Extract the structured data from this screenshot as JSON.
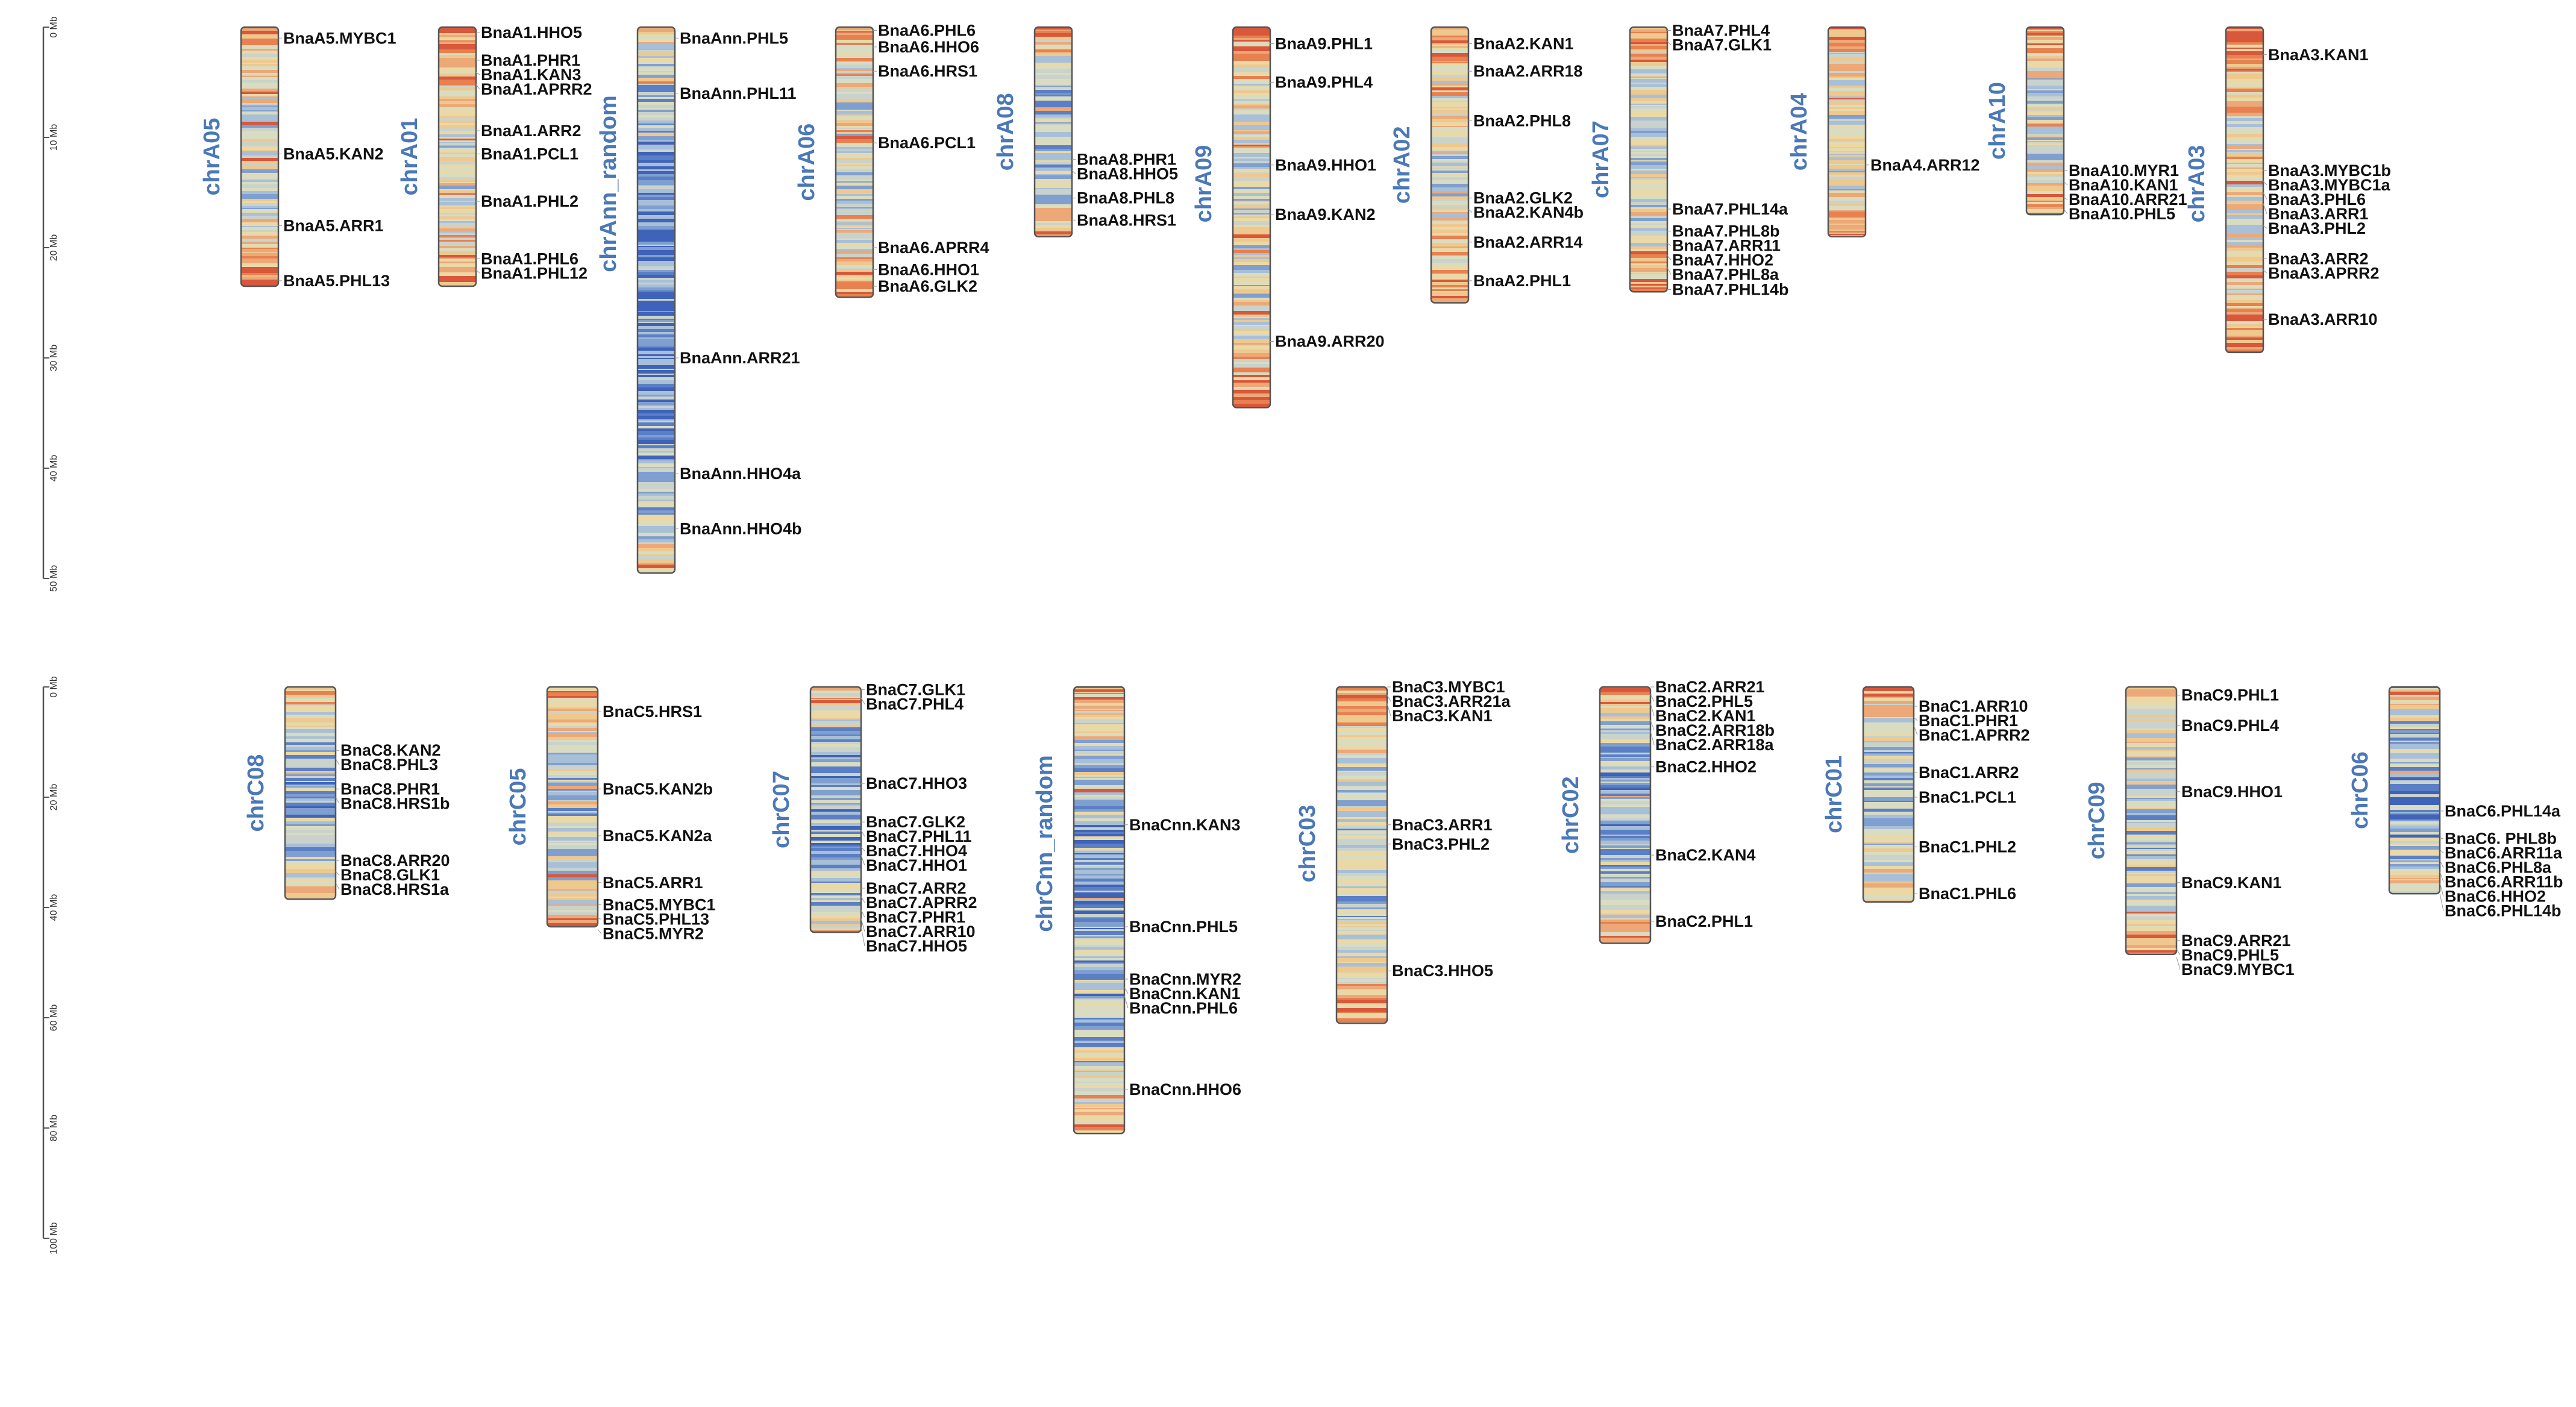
{
  "figure": {
    "type": "chromosome-ideogram"
  },
  "scale": {
    "unit": "Mb",
    "top_ticks": [
      "0 Mb",
      "10 Mb",
      "20 Mb",
      "30 Mb",
      "40 Mb",
      "50 Mb"
    ],
    "bottom_ticks": [
      "0 Mb",
      "20 Mb",
      "40 Mb",
      "60 Mb",
      "80 Mb",
      "100 Mb"
    ]
  },
  "colors": {
    "chromosome_label": "#4a78b8",
    "low_density": "#4a6fc0",
    "mid_density": "#ecdcad",
    "high_density": "#e8744c",
    "gene_label": "#111111"
  },
  "rows": [
    {
      "mb_per_unit": 1,
      "chromosomes": [
        {
          "name": "chrA05",
          "length_mb": 23.5,
          "genes": [
            {
              "label": "BnaA5.MYBC1",
              "pos": 1.0
            },
            {
              "label": "BnaA5.KAN2",
              "pos": 11.5
            },
            {
              "label": "BnaA5.ARR1",
              "pos": 18.0
            },
            {
              "label": "BnaA5.PHL13",
              "pos": 23.0
            }
          ]
        },
        {
          "name": "chrA01",
          "length_mb": 23.5,
          "genes": [
            {
              "label": "BnaA1.HHO5",
              "pos": 0.5
            },
            {
              "label": "BnaA1.PHR1",
              "pos": 3.0
            },
            {
              "label": "BnaA1.KAN3",
              "pos": 4.1
            },
            {
              "label": "BnaA1.APRR2",
              "pos": 5.2
            },
            {
              "label": "BnaA1.ARR2",
              "pos": 9.4
            },
            {
              "label": "BnaA1.PCL1",
              "pos": 11.5
            },
            {
              "label": "BnaA1.PHL2",
              "pos": 15.8
            },
            {
              "label": "BnaA1.PHL6",
              "pos": 21.0
            },
            {
              "label": "BnaA1.PHL12",
              "pos": 22.0
            }
          ]
        },
        {
          "name": "chrAnn_random",
          "length_mb": 49.5,
          "genes": [
            {
              "label": "BnaAnn.PHL5",
              "pos": 1.0
            },
            {
              "label": "BnaAnn.PHL11",
              "pos": 6.0
            },
            {
              "label": "BnaAnn.ARR21",
              "pos": 30.0
            },
            {
              "label": "BnaAnn.HHO4a",
              "pos": 40.5
            },
            {
              "label": "BnaAnn.HHO4b",
              "pos": 45.5
            }
          ]
        },
        {
          "name": "chrA06",
          "length_mb": 24.5,
          "genes": [
            {
              "label": "BnaA6.PHL6",
              "pos": 0.3
            },
            {
              "label": "BnaA6.HHO6",
              "pos": 1.8
            },
            {
              "label": "BnaA6.HRS1",
              "pos": 4.0
            },
            {
              "label": "BnaA6.PCL1",
              "pos": 10.5
            },
            {
              "label": "BnaA6.APRR4",
              "pos": 20.0
            },
            {
              "label": "BnaA6.HHO1",
              "pos": 22.0
            },
            {
              "label": "BnaA6.GLK2",
              "pos": 23.5
            }
          ]
        },
        {
          "name": "chrA08",
          "length_mb": 19.0,
          "genes": [
            {
              "label": "BnaA8.PHR1",
              "pos": 12.0
            },
            {
              "label": "BnaA8.HHO5",
              "pos": 13.0
            },
            {
              "label": "BnaA8.PHL8",
              "pos": 15.5
            },
            {
              "label": "BnaA8.HRS1",
              "pos": 17.5
            }
          ]
        },
        {
          "name": "chrA09",
          "length_mb": 34.5,
          "genes": [
            {
              "label": "BnaA9.PHL1",
              "pos": 1.5
            },
            {
              "label": "BnaA9.PHL4",
              "pos": 5.0
            },
            {
              "label": "BnaA9.HHO1",
              "pos": 12.5
            },
            {
              "label": "BnaA9.KAN2",
              "pos": 17.0
            },
            {
              "label": "BnaA9.ARR20",
              "pos": 28.5
            }
          ]
        },
        {
          "name": "chrA02",
          "length_mb": 25.0,
          "genes": [
            {
              "label": "BnaA2.KAN1",
              "pos": 1.5
            },
            {
              "label": "BnaA2.ARR18",
              "pos": 4.0
            },
            {
              "label": "BnaA2.PHL8",
              "pos": 8.5
            },
            {
              "label": "BnaA2.GLK2",
              "pos": 15.5
            },
            {
              "label": "BnaA2.KAN4b",
              "pos": 16.5
            },
            {
              "label": "BnaA2.ARR14",
              "pos": 19.5
            },
            {
              "label": "BnaA2.PHL1",
              "pos": 23.0
            }
          ]
        },
        {
          "name": "chrA07",
          "length_mb": 24.0,
          "genes": [
            {
              "label": "BnaA7.PHL4",
              "pos": 0.3
            },
            {
              "label": "BnaA7.GLK1",
              "pos": 1.3
            },
            {
              "label": "BnaA7.PHL14a",
              "pos": 16.5
            },
            {
              "label": "BnaA7.PHL8b",
              "pos": 18.5
            },
            {
              "label": "BnaA7.ARR11",
              "pos": 19.6
            },
            {
              "label": "BnaA7.HHO2",
              "pos": 20.7
            },
            {
              "label": "BnaA7.PHL8a",
              "pos": 21.8
            },
            {
              "label": "BnaA7.PHL14b",
              "pos": 23.8
            }
          ]
        },
        {
          "name": "chrA04",
          "length_mb": 19.0,
          "genes": [
            {
              "label": "BnaA4.ARR12",
              "pos": 12.5
            }
          ]
        },
        {
          "name": "chrA10",
          "length_mb": 17.0,
          "genes": [
            {
              "label": "BnaA10.MYR1",
              "pos": 13.0
            },
            {
              "label": "BnaA10.KAN1",
              "pos": 14.0
            },
            {
              "label": "BnaA10.ARR21",
              "pos": 15.5
            },
            {
              "label": "BnaA10.PHL5",
              "pos": 16.5
            }
          ]
        },
        {
          "name": "chrA03",
          "length_mb": 29.5,
          "genes": [
            {
              "label": "BnaA3.KAN1",
              "pos": 2.5
            },
            {
              "label": "BnaA3.MYBC1b",
              "pos": 13.0
            },
            {
              "label": "BnaA3.MYBC1a",
              "pos": 14.0
            },
            {
              "label": "BnaA3.PHL6",
              "pos": 15.0
            },
            {
              "label": "BnaA3.ARR1",
              "pos": 16.0
            },
            {
              "label": "BnaA3.PHL2",
              "pos": 18.0
            },
            {
              "label": "BnaA3.ARR2",
              "pos": 21.0
            },
            {
              "label": "BnaA3.APRR2",
              "pos": 22.0
            },
            {
              "label": "BnaA3.ARR10",
              "pos": 26.5
            }
          ]
        }
      ]
    },
    {
      "mb_per_unit": 1,
      "chromosomes": [
        {
          "name": "chrC08",
          "length_mb": 38.5,
          "genes": [
            {
              "label": "BnaC8.KAN2",
              "pos": 11.5
            },
            {
              "label": "BnaC8.PHL3",
              "pos": 13.0
            },
            {
              "label": "BnaC8.PHR1",
              "pos": 18.5
            },
            {
              "label": "BnaC8.HRS1b",
              "pos": 20.0
            },
            {
              "label": "BnaC8.ARR20",
              "pos": 31.5
            },
            {
              "label": "BnaC8.GLK1",
              "pos": 33.5
            },
            {
              "label": "BnaC8.HRS1a",
              "pos": 35.5
            }
          ]
        },
        {
          "name": "chrC05",
          "length_mb": 43.5,
          "genes": [
            {
              "label": "BnaC5.HRS1",
              "pos": 4.5
            },
            {
              "label": "BnaC5.KAN2b",
              "pos": 18.5
            },
            {
              "label": "BnaC5.KAN2a",
              "pos": 27.0
            },
            {
              "label": "BnaC5.ARR1",
              "pos": 35.5
            },
            {
              "label": "BnaC5.MYBC1",
              "pos": 39.5
            },
            {
              "label": "BnaC5.PHL13",
              "pos": 42.0
            },
            {
              "label": "BnaC5.MYR2",
              "pos": 44.0
            }
          ]
        },
        {
          "name": "chrC07",
          "length_mb": 44.5,
          "genes": [
            {
              "label": "BnaC7.GLK1",
              "pos": 0.5
            },
            {
              "label": "BnaC7.PHL4",
              "pos": 2.0
            },
            {
              "label": "BnaC7.HHO3",
              "pos": 17.5
            },
            {
              "label": "BnaC7.GLK2",
              "pos": 24.5
            },
            {
              "label": "BnaC7.PHL11",
              "pos": 26.0
            },
            {
              "label": "BnaC7.HHO4",
              "pos": 29.0
            },
            {
              "label": "BnaC7.HHO1",
              "pos": 30.5
            },
            {
              "label": "BnaC7.ARR2",
              "pos": 36.5
            },
            {
              "label": "BnaC7.APRR2",
              "pos": 38.0
            },
            {
              "label": "BnaC7.PHR1",
              "pos": 40.5
            },
            {
              "label": "BnaC7.ARR10",
              "pos": 42.0
            },
            {
              "label": "BnaC7.HHO5",
              "pos": 43.5
            }
          ]
        },
        {
          "name": "chrCnn_random",
          "length_mb": 81.0,
          "genes": [
            {
              "label": "BnaCnn.KAN3",
              "pos": 25.0
            },
            {
              "label": "BnaCnn.PHL5",
              "pos": 43.5
            },
            {
              "label": "BnaCnn.MYR2",
              "pos": 53.0
            },
            {
              "label": "BnaCnn.KAN1",
              "pos": 54.5
            },
            {
              "label": "BnaCnn.PHL6",
              "pos": 56.0
            },
            {
              "label": "BnaCnn.HHO6",
              "pos": 73.0
            }
          ]
        },
        {
          "name": "chrC03",
          "length_mb": 61.0,
          "genes": [
            {
              "label": "BnaC3.MYBC1",
              "pos": 0.0
            },
            {
              "label": "BnaC3.ARR21a",
              "pos": 1.5
            },
            {
              "label": "BnaC3.KAN1",
              "pos": 3.0
            },
            {
              "label": "BnaC3.ARR1",
              "pos": 25.0
            },
            {
              "label": "BnaC3.PHL2",
              "pos": 28.5
            },
            {
              "label": "BnaC3.HHO5",
              "pos": 51.5
            }
          ]
        },
        {
          "name": "chrC02",
          "length_mb": 46.5,
          "genes": [
            {
              "label": "BnaC2.ARR21",
              "pos": 0.0
            },
            {
              "label": "BnaC2.PHL5",
              "pos": 1.3
            },
            {
              "label": "BnaC2.KAN1",
              "pos": 3.0
            },
            {
              "label": "BnaC2.ARR18b",
              "pos": 6.0
            },
            {
              "label": "BnaC2.ARR18a",
              "pos": 8.0
            },
            {
              "label": "BnaC2.HHO2",
              "pos": 14.5
            },
            {
              "label": "BnaC2.KAN4",
              "pos": 30.5
            },
            {
              "label": "BnaC2.PHL1",
              "pos": 42.5
            }
          ]
        },
        {
          "name": "chrC01",
          "length_mb": 39.0,
          "genes": [
            {
              "label": "BnaC1.ARR10",
              "pos": 3.5
            },
            {
              "label": "BnaC1.PHR1",
              "pos": 5.5
            },
            {
              "label": "BnaC1.APRR2",
              "pos": 7.0
            },
            {
              "label": "BnaC1.ARR2",
              "pos": 15.5
            },
            {
              "label": "BnaC1.PCL1",
              "pos": 20.0
            },
            {
              "label": "BnaC1.PHL2",
              "pos": 29.0
            },
            {
              "label": "BnaC1.PHL6",
              "pos": 37.5
            }
          ]
        },
        {
          "name": "chrC09",
          "length_mb": 48.5,
          "genes": [
            {
              "label": "BnaC9.PHL1",
              "pos": 1.5
            },
            {
              "label": "BnaC9.PHL4",
              "pos": 7.0
            },
            {
              "label": "BnaC9.HHO1",
              "pos": 19.0
            },
            {
              "label": "BnaC9.KAN1",
              "pos": 35.5
            },
            {
              "label": "BnaC9.ARR21",
              "pos": 46.0
            },
            {
              "label": "BnaC9.PHL5",
              "pos": 47.5
            },
            {
              "label": "BnaC9.MYBC1",
              "pos": 49.0
            }
          ]
        },
        {
          "name": "chrC06",
          "length_mb": 37.5,
          "genes": [
            {
              "label": "BnaC6.PHL14a",
              "pos": 22.5
            },
            {
              "label": "BnaC6. PHL8b",
              "pos": 27.5
            },
            {
              "label": "BnaC6.ARR11a",
              "pos": 29.5
            },
            {
              "label": "BnaC6.PHL8a",
              "pos": 31.5
            },
            {
              "label": "BnaC6.ARR11b",
              "pos": 33.5
            },
            {
              "label": "BnaC6.HHO2",
              "pos": 35.5
            },
            {
              "label": "BnaC6.PHL14b",
              "pos": 37.5
            }
          ]
        }
      ]
    }
  ]
}
